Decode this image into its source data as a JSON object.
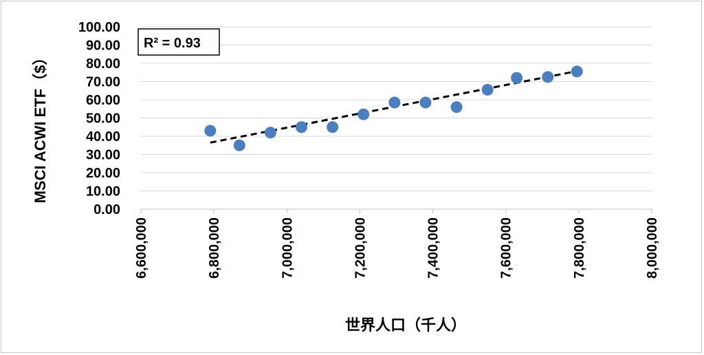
{
  "chart_data": {
    "type": "scatter",
    "xlabel": "世界人口（千人）",
    "ylabel": "MSCI ACWI ETF（$）",
    "xlim": [
      6600000,
      8000000
    ],
    "ylim": [
      0,
      100
    ],
    "x_ticks": [
      "6,600,000",
      "6,800,000",
      "7,000,000",
      "7,200,000",
      "7,400,000",
      "7,600,000",
      "7,800,000",
      "8,000,000"
    ],
    "y_ticks": [
      "0.00",
      "10.00",
      "20.00",
      "30.00",
      "40.00",
      "50.00",
      "60.00",
      "70.00",
      "80.00",
      "90.00",
      "100.00"
    ],
    "grid": "horizontal",
    "marker_color": "#4a7ebf",
    "trendline": {
      "style": "dashed",
      "color": "#000000",
      "start": [
        6790000,
        36.5
      ],
      "end": [
        7790000,
        75.5
      ]
    },
    "annotation": "R² = 0.93",
    "series": [
      {
        "points": [
          [
            6790000,
            43.0
          ],
          [
            6870000,
            35.0
          ],
          [
            6955000,
            42.0
          ],
          [
            7040000,
            45.0
          ],
          [
            7125000,
            45.0
          ],
          [
            7210000,
            52.0
          ],
          [
            7295000,
            58.5
          ],
          [
            7380000,
            58.5
          ],
          [
            7465000,
            56.0
          ],
          [
            7550000,
            65.5
          ],
          [
            7630000,
            72.0
          ],
          [
            7715000,
            72.5
          ],
          [
            7795000,
            75.5
          ]
        ]
      }
    ]
  }
}
